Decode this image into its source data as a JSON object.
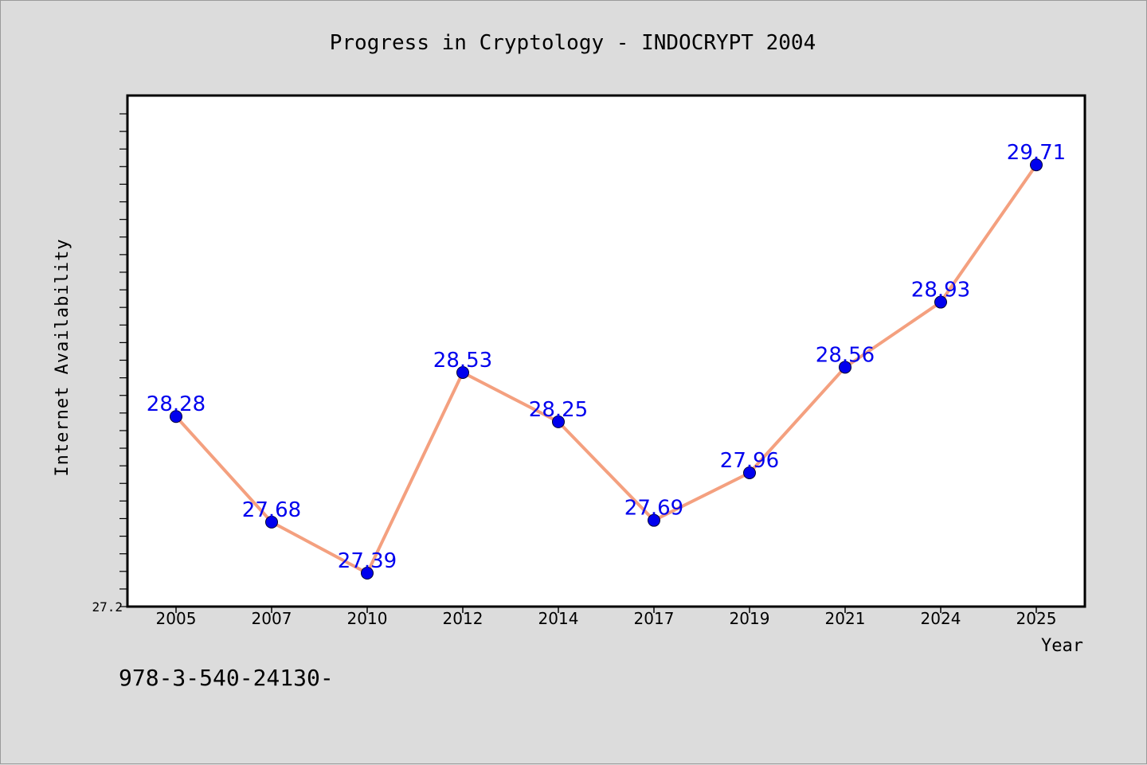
{
  "footer": {
    "text": "978-3-540-24130-"
  },
  "chart_data": {
    "type": "line",
    "title": "Progress in Cryptology - INDOCRYPT 2004",
    "xlabel": "Year",
    "ylabel": "Internet Availability",
    "categories": [
      "2005",
      "2007",
      "2010",
      "2012",
      "2014",
      "2017",
      "2019",
      "2021",
      "2024",
      "2025"
    ],
    "series": [
      {
        "values": [
          28.28,
          27.68,
          27.39,
          28.53,
          28.25,
          27.69,
          27.96,
          28.56,
          28.93,
          29.71
        ]
      }
    ],
    "ylim": [
      27.2,
      30.0
    ],
    "yticks_labeled": [
      "27.2"
    ],
    "grid": false,
    "line_color": "#f4a07f",
    "marker_color": "#0000ee",
    "label_color": "#0000ee"
  }
}
